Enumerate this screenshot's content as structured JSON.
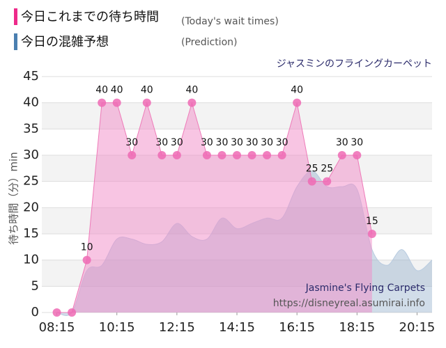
{
  "chart_data": {
    "type": "area",
    "subtitle": "ジャスミンのフライングカーペット",
    "ylabel": "待ち時間（分）min",
    "watermark": [
      "Jasmine's Flying Carpets",
      "https://disneyreal.asumirai.info"
    ],
    "xlim": [
      "07:45",
      "20:45"
    ],
    "xticks": [
      "08:15",
      "10:15",
      "12:15",
      "14:15",
      "16:15",
      "18:15",
      "20:15"
    ],
    "ylim": [
      0,
      45
    ],
    "yticks": [
      0,
      5,
      10,
      15,
      20,
      25,
      30,
      35,
      40,
      45
    ],
    "grid": true,
    "series": [
      {
        "name": "今日の混雑予想",
        "note": "(Prediction)",
        "color": "#4a7fb0",
        "x": [
          "08:15",
          "08:45",
          "09:15",
          "09:45",
          "10:15",
          "10:45",
          "11:15",
          "11:45",
          "12:15",
          "12:45",
          "13:15",
          "13:45",
          "14:15",
          "14:45",
          "15:15",
          "15:45",
          "16:15",
          "16:45",
          "17:15",
          "17:45",
          "18:15",
          "18:45",
          "19:15",
          "19:45",
          "20:15",
          "20:45"
        ],
        "values": [
          0,
          0,
          8,
          9,
          14,
          14,
          13,
          13.5,
          17,
          14.5,
          14,
          18,
          16,
          17,
          18,
          18,
          24,
          27,
          24,
          24,
          23.5,
          12,
          9,
          12,
          8,
          10
        ]
      },
      {
        "name": "今日これまでの待ち時間",
        "note": "(Today's wait times)",
        "color": "#ee2a8a",
        "x": [
          "08:15",
          "08:45",
          "09:15",
          "09:45",
          "10:15",
          "10:45",
          "11:15",
          "11:45",
          "12:15",
          "12:45",
          "13:15",
          "13:45",
          "14:15",
          "14:45",
          "15:15",
          "15:45",
          "16:15",
          "16:45",
          "17:15",
          "17:45",
          "18:15",
          "18:45"
        ],
        "values": [
          0,
          0,
          10,
          40,
          40,
          30,
          40,
          30,
          30,
          40,
          30,
          30,
          30,
          30,
          30,
          30,
          40,
          25,
          25,
          30,
          30,
          15
        ]
      }
    ]
  }
}
